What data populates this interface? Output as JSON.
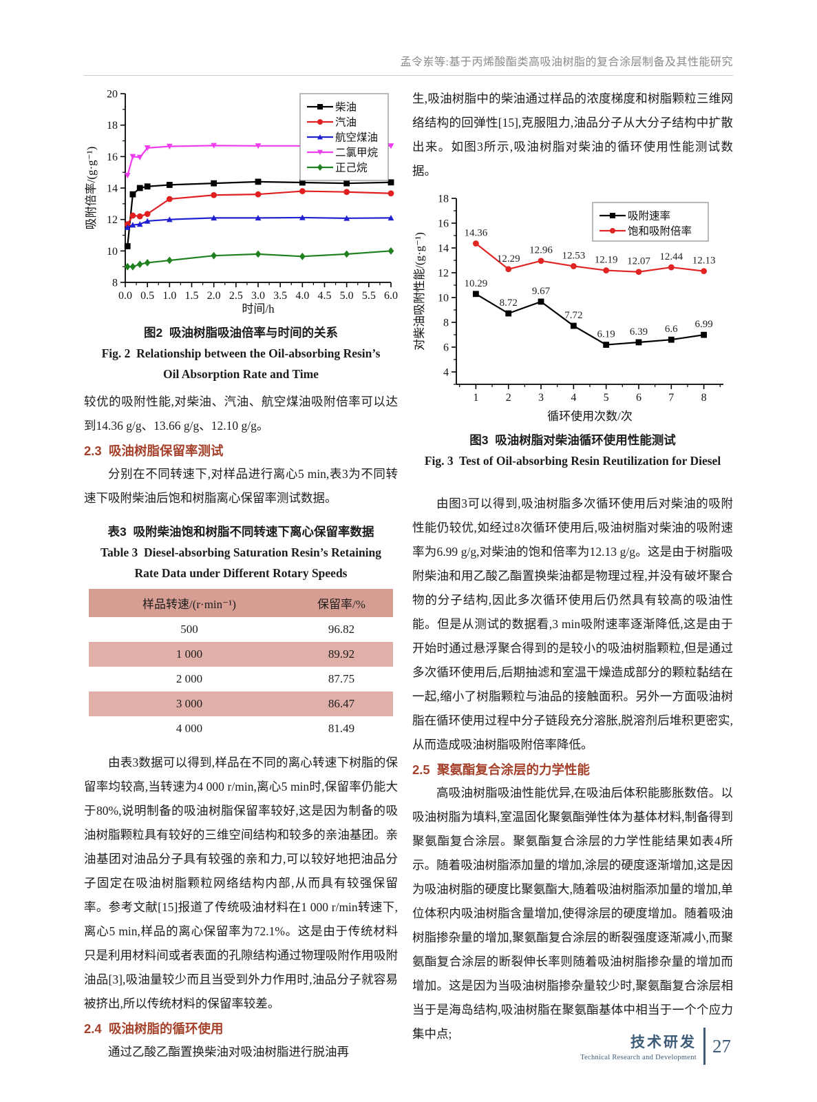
{
  "header": {
    "title": "孟令岽等:基于丙烯酸酯类高吸油树脂的复合涂层制备及其性能研究"
  },
  "left": {
    "fig2": {
      "caption_zh": "图2  吸油树脂吸油倍率与时间的关系",
      "caption_en_1": "Fig. 2  Relationship between the Oil-absorbing Resin’s",
      "caption_en_2": "Oil Absorption Rate and Time"
    },
    "para_after_fig2": "较优的吸附性能,对柴油、汽油、航空煤油吸附倍率可以达到14.36 g/g、13.66 g/g、12.10 g/g。",
    "sec23": "2.3  吸油树脂保留率测试",
    "para_23": "分别在不同转速下,对样品进行离心5 min,表3为不同转速下吸附柴油后饱和树脂离心保留率测试数据。",
    "table3": {
      "caption_zh": "表3  吸附柴油饱和树脂不同转速下离心保留率数据",
      "caption_en_1": "Table 3  Diesel-absorbing Saturation Resin’s Retaining",
      "caption_en_2": "Rate Data under Different Rotary Speeds",
      "col_headers": [
        "样品转速/(r·min⁻¹)",
        "保留率/%"
      ],
      "rows": [
        [
          "500",
          "96.82"
        ],
        [
          "1 000",
          "89.92"
        ],
        [
          "2 000",
          "87.75"
        ],
        [
          "3 000",
          "86.47"
        ],
        [
          "4 000",
          "81.49"
        ]
      ]
    },
    "para_table": "由表3数据可以得到,样品在不同的离心转速下树脂的保留率均较高,当转速为4 000 r/min,离心5 min时,保留率仍能大于80%,说明制备的吸油树脂保留率较好,这是因为制备的吸油树脂颗粒具有较好的三维空间结构和较多的亲油基团。亲油基团对油品分子具有较强的亲和力,可以较好地把油品分子固定在吸油树脂颗粒网络结构内部,从而具有较强保留率。参考文献[15]报道了传统吸油材料在1 000 r/min转速下,离心5 min,样品的离心保留率为72.1%。这是由于传统材料只是利用材料间或者表面的孔隙结构通过物理吸附作用吸附油品[3],吸油量较少而且当受到外力作用时,油品分子就容易被挤出,所以传统材料的保留率较差。",
    "sec24": "2.4  吸油树脂的循环使用",
    "para_24": "通过乙酸乙酯置换柴油对吸油树脂进行脱油再"
  },
  "right": {
    "para_top": "生,吸油树脂中的柴油通过样品的浓度梯度和树脂颗粒三维网络结构的回弹性[15],克服阻力,油品分子从大分子结构中扩散出来。如图3所示,吸油树脂对柴油的循环使用性能测试数据。",
    "fig3": {
      "caption_zh": "图3  吸油树脂对柴油循环使用性能测试",
      "caption_en": "Fig. 3  Test of Oil-absorbing Resin Reutilization for Diesel"
    },
    "para_fig3": "由图3可以得到,吸油树脂多次循环使用后对柴油的吸附性能仍较优,如经过8次循环使用后,吸油树脂对柴油的吸附速率为6.99 g/g,对柴油的饱和倍率为12.13 g/g。这是由于树脂吸附柴油和用乙酸乙酯置换柴油都是物理过程,并没有破坏聚合物的分子结构,因此多次循环使用后仍然具有较高的吸油性能。但是从测试的数据看,3 min吸附速率逐渐降低,这是由于开始时通过悬浮聚合得到的是较小的吸油树脂颗粒,但是通过多次循环使用后,后期抽滤和室温干燥造成部分的颗粒黏结在一起,缩小了树脂颗粒与油品的接触面积。另外一方面吸油树脂在循环使用过程中分子链段充分溶胀,脱溶剂后堆积更密实,从而造成吸油树脂吸附倍率降低。",
    "sec25": "2.5  聚氨酯复合涂层的力学性能",
    "para_25": "高吸油树脂吸油性能优异,在吸油后体积能膨胀数倍。以吸油树脂为填料,室温固化聚氨酯弹性体为基体材料,制备得到聚氨酯复合涂层。聚氨酯复合涂层的力学性能结果如表4所示。随着吸油树脂添加量的增加,涂层的硬度逐渐增加,这是因为吸油树脂的硬度比聚氨酯大,随着吸油树脂添加量的增加,单位体积内吸油树脂含量增加,使得涂层的硬度增加。随着吸油树脂掺杂量的增加,聚氨酯复合涂层的断裂强度逐渐减小,而聚氨酯复合涂层的断裂伸长率则随着吸油树脂掺杂量的增加而增加。这是因为当吸油树脂掺杂量较少时,聚氨酯复合涂层相当于是海岛结构,吸油树脂在聚氨酯基体中相当于一个个应力集中点;"
  },
  "footer": {
    "zh": "技术研发",
    "en": "Technical Research and Development",
    "page": "27"
  },
  "chart_data": [
    {
      "type": "line",
      "title": "",
      "xlabel": "时间/h",
      "ylabel": "吸附倍率/(g·g⁻¹)",
      "xlim": [
        0,
        6
      ],
      "ylim": [
        8,
        20
      ],
      "xticks": [
        0,
        0.5,
        1,
        1.5,
        2,
        2.5,
        3,
        3.5,
        4,
        4.5,
        5,
        5.5,
        6
      ],
      "xtick_decimals": 1,
      "yticks": [
        8,
        10,
        12,
        14,
        16,
        18,
        20
      ],
      "x_minor_step": 0.25,
      "y_minor_step": 1,
      "grid": false,
      "legend_position": "top-right",
      "x": [
        0.05,
        0.17,
        0.33,
        0.5,
        1,
        2,
        3,
        4,
        5,
        6
      ],
      "series": [
        {
          "name": "柴油",
          "color": "#000000",
          "marker": "square",
          "values": [
            10.3,
            13.6,
            14.0,
            14.1,
            14.2,
            14.3,
            14.4,
            14.35,
            14.3,
            14.36
          ]
        },
        {
          "name": "汽油",
          "color": "#e02020",
          "marker": "circle",
          "values": [
            11.7,
            12.25,
            12.2,
            12.35,
            13.3,
            13.55,
            13.6,
            13.8,
            13.75,
            13.66
          ]
        },
        {
          "name": "航空煤油",
          "color": "#2020d0",
          "marker": "triangle-up",
          "values": [
            11.5,
            11.65,
            11.7,
            11.9,
            12.0,
            12.1,
            12.1,
            12.12,
            12.08,
            12.1
          ]
        },
        {
          "name": "二氯甲烷",
          "color": "#ee3cee",
          "marker": "triangle-down",
          "values": [
            14.8,
            16.0,
            15.95,
            16.55,
            16.65,
            16.7,
            16.68,
            16.68,
            16.75,
            16.68
          ]
        },
        {
          "name": "正己烷",
          "color": "#208020",
          "marker": "diamond",
          "values": [
            9.0,
            9.0,
            9.15,
            9.25,
            9.4,
            9.7,
            9.8,
            9.65,
            9.8,
            10.0
          ]
        }
      ]
    },
    {
      "type": "line",
      "title": "",
      "xlabel": "循环使用次数/次",
      "ylabel": "对柴油吸附性能/(g·g⁻¹)",
      "xlim": [
        0.4,
        8.6
      ],
      "ylim": [
        3,
        18
      ],
      "xticks": [
        1,
        2,
        3,
        4,
        5,
        6,
        7,
        8
      ],
      "xtick_decimals": 0,
      "yticks": [
        4,
        6,
        8,
        10,
        12,
        14,
        16,
        18
      ],
      "x_minor_step": 0.5,
      "y_minor_step": 1,
      "grid": false,
      "legend_position": "top-right",
      "x": [
        1,
        2,
        3,
        4,
        5,
        6,
        7,
        8
      ],
      "series": [
        {
          "name": "吸附速率",
          "color": "#000000",
          "marker": "square",
          "show_labels": true,
          "values": [
            10.29,
            8.72,
            9.67,
            7.72,
            6.19,
            6.39,
            6.6,
            6.99
          ]
        },
        {
          "name": "饱和吸附倍率",
          "color": "#e02424",
          "marker": "circle",
          "show_labels": true,
          "values": [
            14.36,
            12.29,
            12.96,
            12.53,
            12.19,
            12.07,
            12.44,
            12.13
          ]
        }
      ]
    }
  ]
}
